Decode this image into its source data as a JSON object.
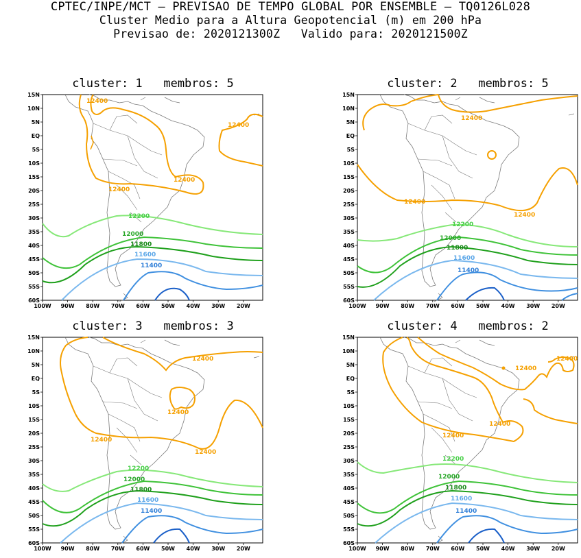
{
  "header": {
    "line1": "CPTEC/INPE/MCT – PREVISAO DE TEMPO GLOBAL POR ENSEMBLE – TQ0126L028",
    "line2": "Cluster Medio para a Altura Geopotencial (m) em 200 hPa",
    "line3": "Previsao de: 2020121300Z   Valido para: 2020121500Z"
  },
  "axes": {
    "lat_ticks": [
      "15N",
      "10N",
      "5N",
      "EQ",
      "5S",
      "10S",
      "15S",
      "20S",
      "25S",
      "30S",
      "35S",
      "40S",
      "45S",
      "50S",
      "55S",
      "60S"
    ],
    "lon_ticks": [
      "100W",
      "90W",
      "80W",
      "70W",
      "60W",
      "50W",
      "40W",
      "30W",
      "20W"
    ]
  },
  "colors": {
    "c12400": "#f5a000",
    "c12200": "#86e878",
    "c12000": "#3ec238",
    "c11800": "#1fa01c",
    "c11600": "#7ab8ee",
    "c11400": "#3f8fe0",
    "c11200": "#1a5fc8",
    "coast": "#7a7a7a"
  },
  "panels": [
    {
      "title": "cluster: 1   membros: 5",
      "labels": {
        "a": "12400",
        "b": "12400",
        "c": "12400",
        "d": "12400",
        "e": "12200",
        "f": "12000",
        "g": "11800",
        "h": "11600",
        "i": "11400"
      }
    },
    {
      "title": "cluster: 2   membros: 5",
      "labels": {
        "a": "12400",
        "b": "12400",
        "c": "12400",
        "d": "12200",
        "e": "12000",
        "f": "11800",
        "g": "11600",
        "h": "11400"
      }
    },
    {
      "title": "cluster: 3   membros: 3",
      "labels": {
        "a": "12400",
        "b": "12400",
        "c": "12400",
        "d": "12400",
        "e": "12200",
        "f": "12000",
        "g": "11800",
        "h": "11600",
        "i": "11400"
      }
    },
    {
      "title": "cluster: 4   membros: 2",
      "labels": {
        "a": "12400",
        "b": "12400",
        "c": "12400",
        "d": "12400",
        "e": "12200",
        "f": "12000",
        "g": "11800",
        "h": "11600",
        "i": "11400"
      }
    }
  ]
}
